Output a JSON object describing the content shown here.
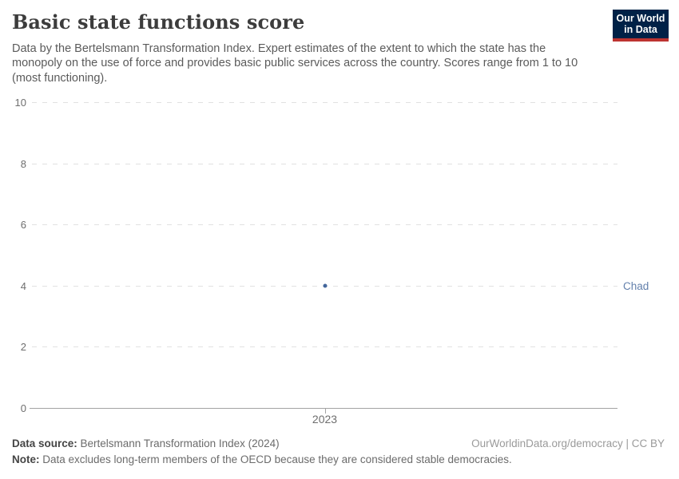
{
  "header": {
    "title": "Basic state functions score",
    "subtitle": "Data by the Bertelsmann Transformation Index. Expert estimates of the extent to which the state has the monopoly on the use of force and provides basic public services across the country. Scores range from 1 to 10 (most functioning).",
    "logo": {
      "line1": "Our World",
      "line2": "in Data",
      "bg_color": "#002147",
      "accent_color": "#bd3431"
    }
  },
  "chart_data": {
    "type": "scatter",
    "title": "Basic state functions score",
    "x": [
      2023
    ],
    "xticks": [
      "2023"
    ],
    "series": [
      {
        "name": "Chad",
        "values": [
          4
        ],
        "color": "#43669c",
        "label_color": "#6380ac"
      }
    ],
    "xlabel": "",
    "ylabel": "",
    "ylim": [
      0,
      10
    ],
    "yticks": [
      0,
      2,
      4,
      6,
      8,
      10
    ],
    "grid": "horizontal-dashed",
    "legend_position": "right-of-plot"
  },
  "footer": {
    "source_label": "Data source:",
    "source_text": " Bertelsmann Transformation Index (2024)",
    "note_label": "Note:",
    "note_text": " Data excludes long-term members of the OECD because they are considered stable democracies.",
    "link_text": "OurWorldinData.org/democracy | CC BY"
  }
}
